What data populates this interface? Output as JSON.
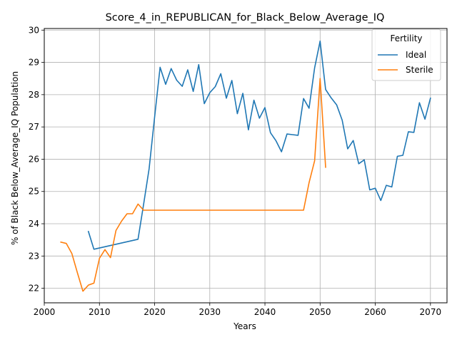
{
  "chart_data": {
    "type": "line",
    "title": "Score_4_in_REPUBLICAN_for_Black_Below_Average_IQ",
    "xlabel": "Years",
    "ylabel": "% of Black Below_Average_IQ Population",
    "xlim": [
      2000,
      2073
    ],
    "ylim": [
      21.55,
      30.05
    ],
    "xticks": [
      2000,
      2010,
      2020,
      2030,
      2040,
      2050,
      2060,
      2070
    ],
    "yticks": [
      22,
      23,
      24,
      25,
      26,
      27,
      28,
      29,
      30
    ],
    "grid": true,
    "legend": {
      "title": "Fertility",
      "position": "top-right"
    },
    "series": [
      {
        "name": "Ideal",
        "color": "#1f77b4",
        "points": [
          [
            2008,
            23.76
          ],
          [
            2009,
            23.21
          ],
          [
            2017,
            23.52
          ],
          [
            2018,
            24.6
          ],
          [
            2019,
            25.7
          ],
          [
            2020,
            27.3
          ],
          [
            2021,
            28.85
          ],
          [
            2022,
            28.32
          ],
          [
            2023,
            28.81
          ],
          [
            2024,
            28.45
          ],
          [
            2025,
            28.26
          ],
          [
            2026,
            28.77
          ],
          [
            2027,
            28.1
          ],
          [
            2028,
            28.93
          ],
          [
            2029,
            27.72
          ],
          [
            2030,
            28.06
          ],
          [
            2031,
            28.25
          ],
          [
            2032,
            28.65
          ],
          [
            2033,
            27.89
          ],
          [
            2034,
            28.44
          ],
          [
            2035,
            27.41
          ],
          [
            2036,
            28.04
          ],
          [
            2037,
            26.91
          ],
          [
            2038,
            27.83
          ],
          [
            2039,
            27.27
          ],
          [
            2040,
            27.6
          ],
          [
            2041,
            26.82
          ],
          [
            2042,
            26.57
          ],
          [
            2043,
            26.23
          ],
          [
            2044,
            26.78
          ],
          [
            2045,
            26.76
          ],
          [
            2046,
            26.74
          ],
          [
            2047,
            27.88
          ],
          [
            2048,
            27.58
          ],
          [
            2049,
            28.83
          ],
          [
            2050,
            29.66
          ],
          [
            2051,
            28.16
          ],
          [
            2052,
            27.9
          ],
          [
            2053,
            27.68
          ],
          [
            2054,
            27.21
          ],
          [
            2055,
            26.32
          ],
          [
            2056,
            26.58
          ],
          [
            2057,
            25.86
          ],
          [
            2058,
            25.98
          ],
          [
            2059,
            25.05
          ],
          [
            2060,
            25.1
          ],
          [
            2061,
            24.72
          ],
          [
            2062,
            25.19
          ],
          [
            2063,
            25.14
          ],
          [
            2064,
            26.09
          ],
          [
            2065,
            26.12
          ],
          [
            2066,
            26.85
          ],
          [
            2067,
            26.83
          ],
          [
            2068,
            27.75
          ],
          [
            2069,
            27.24
          ],
          [
            2070,
            27.89
          ]
        ]
      },
      {
        "name": "Sterile",
        "color": "#ff7f0e",
        "points": [
          [
            2003,
            23.43
          ],
          [
            2004,
            23.39
          ],
          [
            2005,
            23.08
          ],
          [
            2006,
            22.48
          ],
          [
            2007,
            21.91
          ],
          [
            2008,
            22.1
          ],
          [
            2009,
            22.16
          ],
          [
            2010,
            22.93
          ],
          [
            2011,
            23.2
          ],
          [
            2012,
            22.95
          ],
          [
            2013,
            23.79
          ],
          [
            2014,
            24.08
          ],
          [
            2015,
            24.31
          ],
          [
            2016,
            24.31
          ],
          [
            2017,
            24.61
          ],
          [
            2018,
            24.42
          ],
          [
            2019,
            24.42
          ],
          [
            2020,
            24.42
          ],
          [
            2030,
            24.42
          ],
          [
            2040,
            24.42
          ],
          [
            2047,
            24.42
          ],
          [
            2048,
            25.27
          ],
          [
            2049,
            25.95
          ],
          [
            2050,
            28.5
          ],
          [
            2051,
            25.75
          ]
        ]
      }
    ]
  }
}
